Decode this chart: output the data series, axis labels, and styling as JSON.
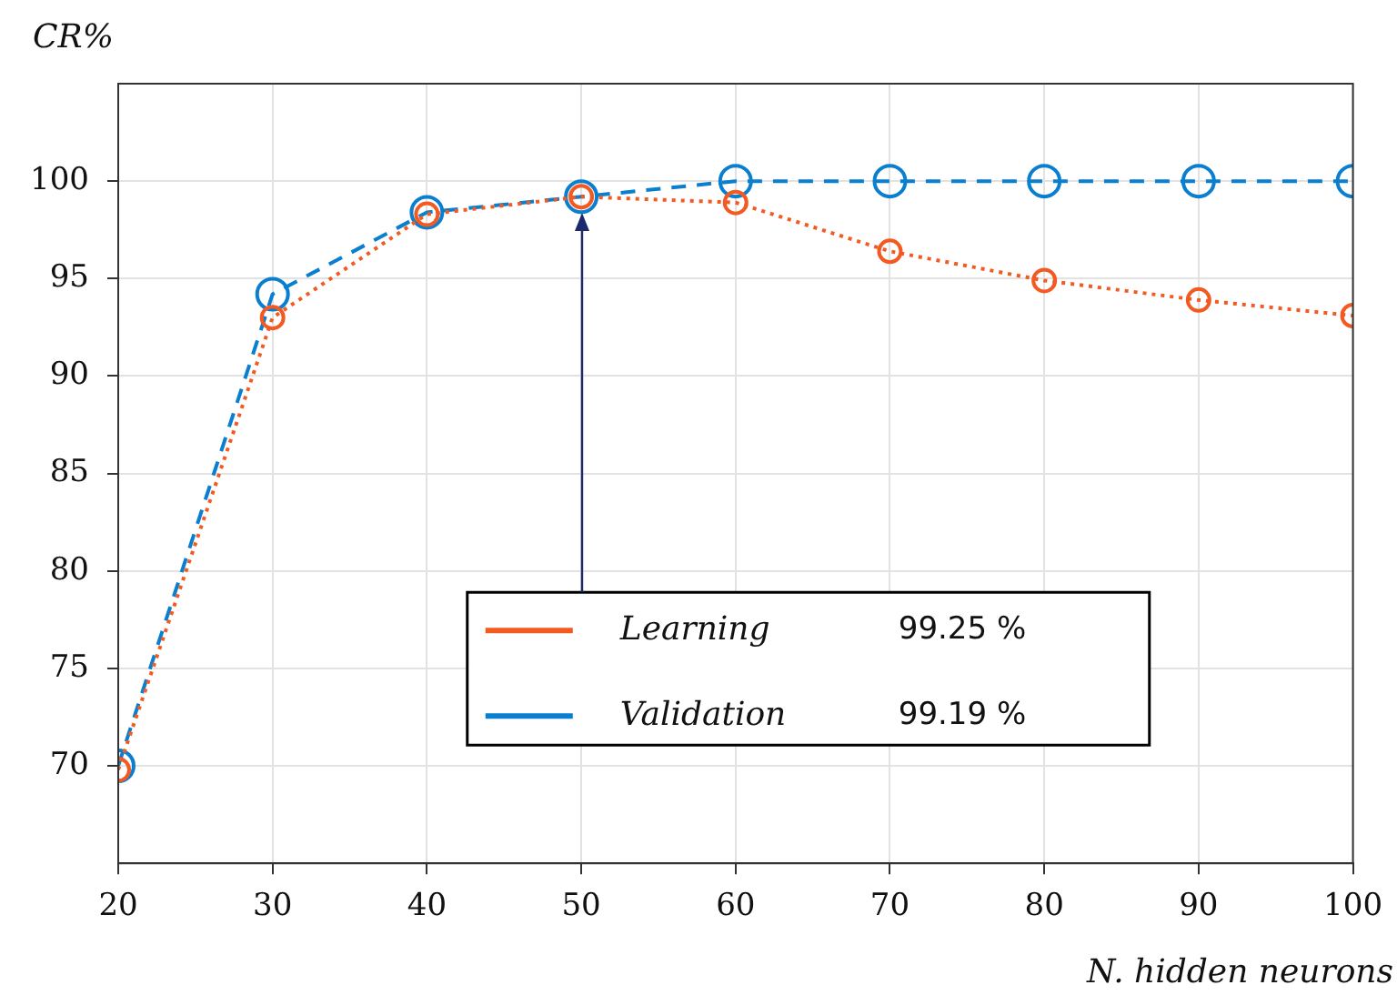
{
  "chart_data": {
    "type": "line",
    "xlabel": "N. hidden neurons",
    "ylabel": "CR%",
    "x": [
      20,
      30,
      40,
      50,
      60,
      70,
      80,
      90,
      100
    ],
    "series": [
      {
        "name": "Learning",
        "color": "#f25a22",
        "line_style": "dotted",
        "values": [
          69.8,
          93,
          98.3,
          99.2,
          98.9,
          96.4,
          94.9,
          93.9,
          93.1
        ]
      },
      {
        "name": "Validation",
        "color": "#0a7fd0",
        "line_style": "dashed",
        "values": [
          70,
          94.2,
          98.4,
          99.2,
          100,
          100,
          100,
          100,
          100
        ]
      }
    ],
    "xlim": [
      20,
      100
    ],
    "xticks": [
      20,
      30,
      40,
      50,
      60,
      70,
      80,
      90,
      100
    ],
    "ylim": [
      65,
      105
    ],
    "yticks": [
      70,
      75,
      80,
      85,
      90,
      95,
      100
    ],
    "grid": true,
    "marker": "circle",
    "legend": "bottom",
    "annotations": [
      "99.25 %",
      "99.19 %"
    ]
  }
}
